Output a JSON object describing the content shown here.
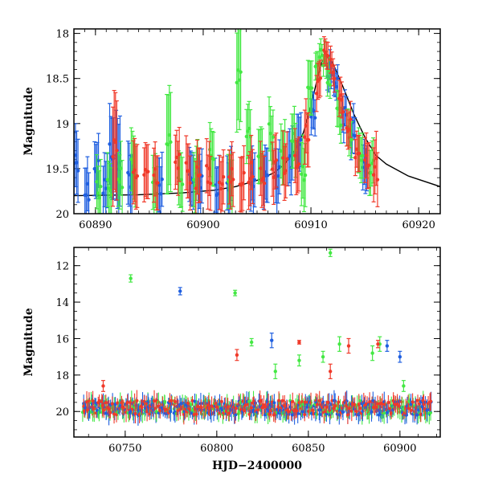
{
  "colors": {
    "blue": "#1f5fe0",
    "green": "#44e844",
    "red": "#f03a2a",
    "model_curve": "#000000",
    "axes": "#000000"
  },
  "chart_data": [
    {
      "type": "scatter",
      "panel": "top",
      "xlabel": "",
      "ylabel": "Magnitude",
      "xlim": [
        60888,
        60922
      ],
      "ylim": [
        20.0,
        17.95
      ],
      "y_inverted": true,
      "x_ticks": [
        60890,
        60900,
        60910,
        60920
      ],
      "x_tick_labels": [
        "60890",
        "60900",
        "60910",
        "60920"
      ],
      "y_ticks": [
        18,
        18.5,
        19,
        19.5,
        20
      ],
      "y_tick_labels": [
        "18",
        "18.5",
        "19",
        "19.5",
        "20"
      ],
      "series": [
        {
          "color": "blue",
          "x": [
            60888.2,
            60889.2,
            60890.1,
            60890.9,
            60891.5,
            60892.1,
            60893.2,
            60896.0,
            60898.9,
            60899.7,
            60901.3,
            60902.4,
            60904.6,
            60905.8,
            60906.9,
            60908.1,
            60908.9,
            60910.2,
            60911.7,
            60912.3,
            60913.1,
            60913.9,
            60915.0
          ],
          "y": [
            19.4,
            19.75,
            19.45,
            19.7,
            19.3,
            19.45,
            19.6,
            19.7,
            19.65,
            19.65,
            19.7,
            19.65,
            19.65,
            19.6,
            19.6,
            19.45,
            19.25,
            18.85,
            18.45,
            18.55,
            18.9,
            19.1,
            19.45
          ],
          "err": [
            0.35,
            0.3,
            0.3,
            0.3,
            0.45,
            0.5,
            0.35,
            0.3,
            0.3,
            0.3,
            0.3,
            0.3,
            0.3,
            0.3,
            0.3,
            0.3,
            0.3,
            0.2,
            0.15,
            0.15,
            0.2,
            0.2,
            0.25
          ]
        },
        {
          "color": "green",
          "x": [
            60890.3,
            60891.3,
            60892.3,
            60893.5,
            60895.5,
            60896.8,
            60897.9,
            60899.3,
            60900.8,
            60902.5,
            60903.3,
            60904.2,
            60905.3,
            60906.3,
            60907.4,
            60908.4,
            60909.3,
            60909.9,
            60910.6,
            60911.1,
            60911.6,
            60912.6,
            60913.6,
            60914.6,
            60915.6
          ],
          "y": [
            19.7,
            19.7,
            19.6,
            19.5,
            19.7,
            19.25,
            19.55,
            19.6,
            19.35,
            19.6,
            18.5,
            19.1,
            19.4,
            19.1,
            19.3,
            19.2,
            19.6,
            18.7,
            18.3,
            18.25,
            18.45,
            18.9,
            19.1,
            19.35,
            19.5
          ],
          "err": [
            0.3,
            0.3,
            0.3,
            0.35,
            0.3,
            0.55,
            0.3,
            0.3,
            0.3,
            0.3,
            0.55,
            0.3,
            0.3,
            0.3,
            0.3,
            0.3,
            0.35,
            0.3,
            0.15,
            0.12,
            0.15,
            0.2,
            0.2,
            0.25,
            0.25
          ]
        },
        {
          "color": "red",
          "x": [
            60891.8,
            60893.7,
            60894.7,
            60895.6,
            60897.6,
            60898.6,
            60899.5,
            60900.5,
            60901.7,
            60902.6,
            60903.6,
            60904.4,
            60905.5,
            60906.6,
            60907.6,
            60908.7,
            60909.6,
            60910.7,
            60911.4,
            60912.0,
            60912.8,
            60913.5,
            60914.3,
            60915.2,
            60916.0
          ],
          "y": [
            19.3,
            19.55,
            19.55,
            19.55,
            19.4,
            19.55,
            19.6,
            19.55,
            19.6,
            19.55,
            19.65,
            19.55,
            19.55,
            19.5,
            19.45,
            19.4,
            19.1,
            18.6,
            18.25,
            18.4,
            18.8,
            19.05,
            19.3,
            19.45,
            19.5
          ],
          "err": [
            0.55,
            0.35,
            0.3,
            0.3,
            0.3,
            0.3,
            0.3,
            0.3,
            0.3,
            0.3,
            0.3,
            0.3,
            0.3,
            0.3,
            0.3,
            0.3,
            0.3,
            0.2,
            0.15,
            0.15,
            0.2,
            0.2,
            0.2,
            0.25,
            0.3
          ]
        }
      ],
      "model_curve": {
        "color": "model_curve",
        "x": [
          60888,
          60894,
          60898,
          60901,
          60903,
          60905,
          60906.5,
          60907.5,
          60908.5,
          60909.3,
          60909.9,
          60910.5,
          60911.0,
          60911.4,
          60912.0,
          60913.0,
          60914.0,
          60915.0,
          60916.0,
          60917.0,
          60919.0,
          60922.0
        ],
        "y": [
          19.8,
          19.79,
          19.77,
          19.74,
          19.7,
          19.63,
          19.55,
          19.46,
          19.3,
          19.1,
          18.85,
          18.55,
          18.32,
          18.25,
          18.32,
          18.6,
          18.9,
          19.15,
          19.35,
          19.45,
          19.58,
          19.7
        ]
      }
    },
    {
      "type": "scatter",
      "panel": "bottom",
      "xlabel": "HJD−2400000",
      "ylabel": "Magnitude",
      "xlim": [
        60722,
        60922
      ],
      "ylim": [
        21.4,
        11.0
      ],
      "y_inverted": true,
      "x_ticks": [
        60750,
        60800,
        60850,
        60900
      ],
      "x_tick_labels": [
        "60750",
        "60800",
        "60850",
        "60900"
      ],
      "y_ticks": [
        12,
        14,
        16,
        18,
        20
      ],
      "y_tick_labels": [
        "12",
        "14",
        "16",
        "18",
        "20"
      ],
      "baseline": {
        "x_start": 60727,
        "x_end": 60917,
        "magnitude": 19.8
      },
      "series": [
        {
          "color": "green",
          "x": [
            60753,
            60810,
            60819,
            60832,
            60845,
            60858,
            60862,
            60867,
            60885,
            60889,
            60902
          ],
          "y": [
            12.7,
            13.5,
            16.2,
            17.8,
            17.2,
            17.0,
            11.3,
            16.3,
            16.8,
            16.3,
            18.6
          ],
          "err": [
            0.2,
            0.15,
            0.2,
            0.4,
            0.3,
            0.3,
            0.2,
            0.4,
            0.4,
            0.4,
            0.3
          ]
        },
        {
          "color": "blue",
          "x": [
            60780,
            60830,
            60893,
            60900
          ],
          "y": [
            13.4,
            16.1,
            16.4,
            17.0
          ],
          "err": [
            0.2,
            0.4,
            0.3,
            0.3
          ]
        },
        {
          "color": "red",
          "x": [
            60738,
            60811,
            60845,
            60862,
            60872,
            60888
          ],
          "y": [
            18.6,
            16.9,
            16.2,
            17.8,
            16.4,
            16.3
          ],
          "err": [
            0.3,
            0.3,
            0.1,
            0.4,
            0.4,
            0.2
          ]
        }
      ]
    }
  ]
}
